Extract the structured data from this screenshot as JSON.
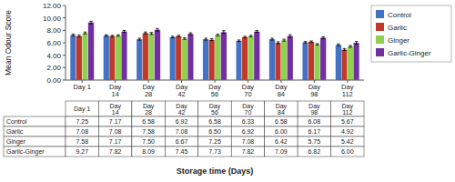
{
  "chart_data": {
    "type": "bar",
    "categories": [
      "Day 1",
      "Day\n14",
      "Day\n28",
      "Day\n42",
      "Day\n56",
      "Day\n70",
      "Day\n84",
      "Day\n98",
      "Day\n112"
    ],
    "series": [
      {
        "name": "Control",
        "color": "#4472C4",
        "values": [
          7.25,
          7.17,
          6.58,
          6.92,
          6.58,
          6.33,
          6.58,
          6.08,
          5.67
        ],
        "errors": [
          0.15,
          0.12,
          0.15,
          0.12,
          0.15,
          0.12,
          0.15,
          0.12,
          0.15
        ]
      },
      {
        "name": "Garlic",
        "color": "#C0392B",
        "values": [
          7.08,
          7.08,
          7.58,
          7.08,
          6.5,
          6.92,
          6.0,
          6.17,
          4.92
        ],
        "errors": [
          0.15,
          0.12,
          0.15,
          0.12,
          0.15,
          0.12,
          0.15,
          0.12,
          0.15
        ]
      },
      {
        "name": "Ginger",
        "color": "#92D050",
        "values": [
          7.58,
          7.17,
          7.5,
          6.67,
          7.25,
          7.08,
          6.42,
          5.75,
          5.42
        ],
        "errors": [
          0.15,
          0.12,
          0.15,
          0.12,
          0.15,
          0.12,
          0.15,
          0.12,
          0.15
        ]
      },
      {
        "name": "Garlic-Ginger",
        "color": "#7030A0",
        "values": [
          9.27,
          7.82,
          8.09,
          7.45,
          7.73,
          7.82,
          7.09,
          6.82,
          6.0
        ],
        "errors": [
          0.2,
          0.15,
          0.2,
          0.15,
          0.2,
          0.15,
          0.2,
          0.15,
          0.2
        ]
      }
    ],
    "ylabel": "Mean Odour Score",
    "xlabel": "Storage time (Days)",
    "ylim": [
      0,
      12.0
    ],
    "yticks": [
      {
        "value": 0,
        "label": "0.00"
      },
      {
        "value": 2,
        "label": "2.00"
      },
      {
        "value": 4,
        "label": "4.00"
      },
      {
        "value": 6,
        "label": "6.00"
      },
      {
        "value": 8,
        "label": "8.00"
      },
      {
        "value": 10,
        "label": "10.00"
      },
      {
        "value": 12,
        "label": "12.00"
      }
    ],
    "grid": false,
    "legend": "right",
    "table": {
      "row_labels": [
        "Control",
        "Garlic",
        "Ginger",
        "Garlic-Ginger"
      ],
      "column_labels": [
        "Day 1",
        "Day\n14",
        "Day\n28",
        "Day\n42",
        "Day\n56",
        "Day\n70",
        "Day\n84",
        "Day\n98",
        "Day\n112"
      ],
      "cells": [
        [
          "7.25",
          "7.17",
          "6.58",
          "6.92",
          "6.58",
          "6.33",
          "6.58",
          "6.08",
          "5.67"
        ],
        [
          "7.08",
          "7.08",
          "7.58",
          "7.08",
          "6.50",
          "6.92",
          "6.00",
          "6.17",
          "4.92"
        ],
        [
          "7.58",
          "7.17",
          "7.50",
          "6.67",
          "7.25",
          "7.08",
          "6.42",
          "5.75",
          "5.42"
        ],
        [
          "9.27",
          "7.82",
          "8.09",
          "7.45",
          "7.73",
          "7.82",
          "7.09",
          "6.82",
          "6.00"
        ]
      ]
    }
  }
}
